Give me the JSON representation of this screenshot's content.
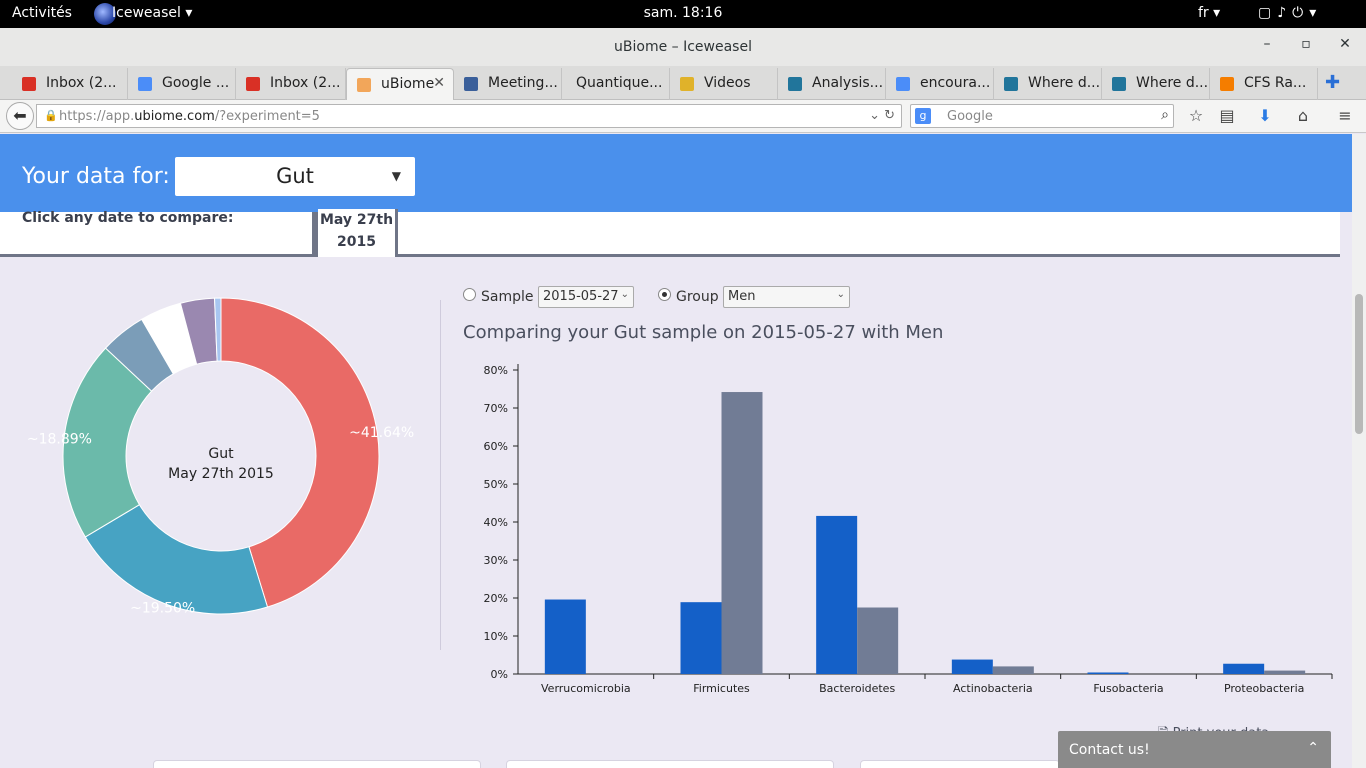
{
  "system": {
    "activities": "Activités",
    "app_name": "Iceweasel",
    "clock": "sam. 18:16",
    "lang": "fr",
    "tray_icons": [
      "window-icon",
      "volume-icon",
      "power-icon"
    ]
  },
  "window": {
    "title": "uBiome – Iceweasel"
  },
  "tabs": [
    {
      "label": "Inbox (2...",
      "icon": "gmail-icon",
      "color": "#d93025"
    },
    {
      "label": "Google ...",
      "icon": "google-icon",
      "color": "#4b8df8"
    },
    {
      "label": "Inbox (2...",
      "icon": "gmail-icon",
      "color": "#d93025"
    },
    {
      "label": "uBiome",
      "icon": "ubiome-icon",
      "color": "#f2a65a",
      "active": true
    },
    {
      "label": "Meeting...",
      "icon": "grid-icon",
      "color": "#3a5f9a"
    },
    {
      "label": "Quantique...",
      "icon": "",
      "color": ""
    },
    {
      "label": "Videos",
      "icon": "videos-icon",
      "color": "#e0b22a"
    },
    {
      "label": "Analysis...",
      "icon": "wordpress-icon",
      "color": "#21759b"
    },
    {
      "label": "encoura...",
      "icon": "google-icon",
      "color": "#4b8df8"
    },
    {
      "label": "Where d...",
      "icon": "wordpress-icon",
      "color": "#21759b"
    },
    {
      "label": "Where d...",
      "icon": "wordpress-icon",
      "color": "#21759b"
    },
    {
      "label": "CFS Ra...",
      "icon": "blogger-icon",
      "color": "#f57d00"
    }
  ],
  "nav": {
    "url_prefix": "https://app.",
    "url_domain": "ubiome.com",
    "url_suffix": "/?experiment=5",
    "search_placeholder": "Google"
  },
  "header": {
    "label": "Your data for:",
    "selected": "Gut"
  },
  "datebar": {
    "hint": "Click any date to compare:",
    "date_line1": "May 27th",
    "date_line2": "2015"
  },
  "controls": {
    "sample_label": "Sample",
    "sample_value": "2015-05-27",
    "group_label": "Group",
    "group_value": "Men",
    "selected": "group"
  },
  "comparison_title": "Comparing your Gut sample on 2015-05-27 with Men",
  "donut": {
    "center_line1": "Gut",
    "center_line2": "May 27th 2015",
    "slices": [
      {
        "value": 41.64,
        "color": "#e96a66",
        "label": "~41.64%"
      },
      {
        "value": 19.5,
        "color": "#47a3c3",
        "label": "~19.50%"
      },
      {
        "value": 18.89,
        "color": "#6bbaaa",
        "label": "~18.89%"
      },
      {
        "value": 4.3,
        "color": "#7b9db8",
        "label": ""
      },
      {
        "value": 3.9,
        "color": "#ffffff",
        "label": ""
      },
      {
        "value": 3.2,
        "color": "#9a88b0",
        "label": ""
      },
      {
        "value": 0.6,
        "color": "#a8c6f0",
        "label": ""
      }
    ]
  },
  "chart_data": {
    "type": "bar",
    "categories": [
      "Verrucomicrobia",
      "Firmicutes",
      "Bacteroidetes",
      "Actinobacteria",
      "Fusobacteria",
      "Proteobacteria"
    ],
    "series": [
      {
        "values": [
          19.6,
          18.9,
          41.6,
          3.8,
          0.4,
          2.7
        ],
        "color": "#1460c8"
      },
      {
        "values": [
          0,
          74.2,
          17.5,
          2.0,
          0,
          0.9
        ],
        "color": "#717c95"
      }
    ],
    "ylim": [
      0,
      80
    ],
    "yticks": [
      "0%",
      "10%",
      "20%",
      "30%",
      "40%",
      "50%",
      "60%",
      "70%",
      "80%"
    ]
  },
  "footer": {
    "print_label": "Print your data",
    "contact_label": "Contact us!"
  }
}
